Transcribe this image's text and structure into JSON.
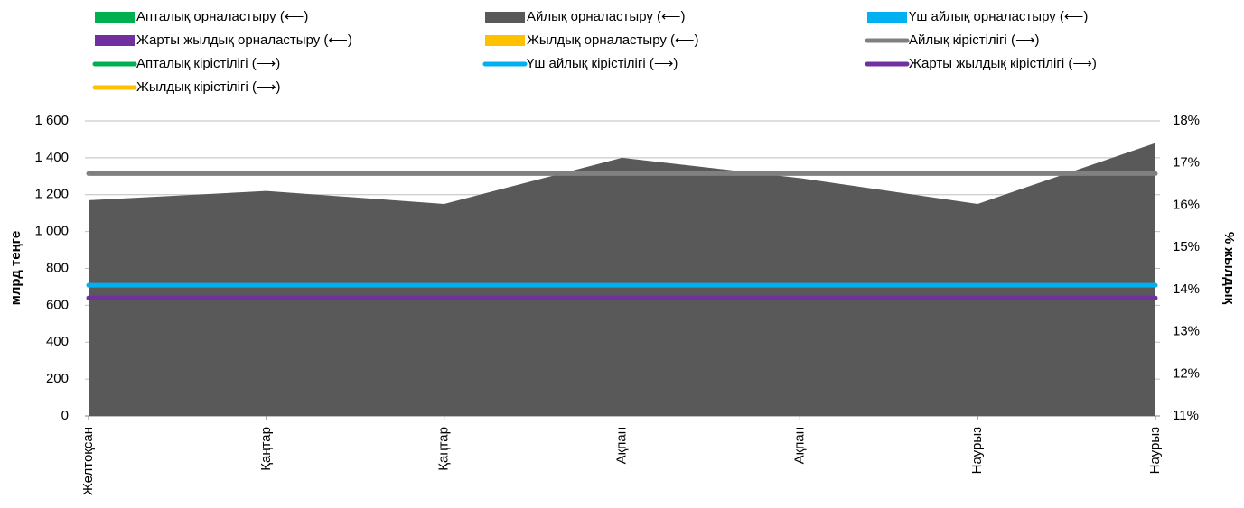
{
  "chart_data": {
    "type": "area-line",
    "categories": [
      "Желтоқсан",
      "Қаңтар",
      "Қаңтар",
      "Ақпан",
      "Ақпан",
      "Наурыз",
      "Наурыз"
    ],
    "y_label": "млрд теңге",
    "y2_label": "% жылдық",
    "ylim": [
      0,
      1600
    ],
    "yticks": [
      0,
      200,
      400,
      600,
      800,
      {
        "value": 1000,
        "label": "1 000"
      },
      {
        "value": 1200,
        "label": "1 200"
      },
      {
        "value": 1400,
        "label": "1 400"
      },
      {
        "value": 1600,
        "label": "1 600"
      }
    ],
    "y2lim": [
      11,
      18
    ],
    "y2ticks": [
      {
        "value": 11,
        "label": "11%"
      },
      {
        "value": 12,
        "label": "12%"
      },
      {
        "value": 13,
        "label": "13%"
      },
      {
        "value": 14,
        "label": "14%"
      },
      {
        "value": 15,
        "label": "15%"
      },
      {
        "value": 16,
        "label": "16%"
      },
      {
        "value": 17,
        "label": "17%"
      },
      {
        "value": 18,
        "label": "18%"
      }
    ],
    "grid": true,
    "series": [
      {
        "name": "Апталық орналастыру (⟵)",
        "kind": "area",
        "color": "#00b050",
        "values": [
          null,
          null,
          null,
          null,
          null,
          null,
          null
        ]
      },
      {
        "name": "Айлық орналастыру (⟵)",
        "kind": "area",
        "color": "#595959",
        "values": [
          1170,
          1220,
          1150,
          1400,
          1290,
          1150,
          1480
        ]
      },
      {
        "name": "Үш айлық орналастыру (⟵)",
        "kind": "area",
        "color": "#00b0f0",
        "values": [
          null,
          null,
          null,
          null,
          null,
          null,
          null
        ]
      },
      {
        "name": "Жарты жылдық орналастыру (⟵)",
        "kind": "area",
        "color": "#7030a0",
        "values": [
          null,
          null,
          null,
          null,
          null,
          null,
          null
        ]
      },
      {
        "name": "Жылдық орналастыру (⟵)",
        "kind": "area",
        "color": "#ffc000",
        "values": [
          null,
          null,
          null,
          null,
          null,
          null,
          null
        ]
      },
      {
        "name": "Айлық кірістілігі (⟶)",
        "kind": "line",
        "axis": "y2",
        "color": "#808080",
        "values": [
          16.75,
          16.75,
          16.75,
          16.75,
          16.75,
          16.75,
          16.75
        ]
      },
      {
        "name": "Апталық кірістілігі (⟶)",
        "kind": "line",
        "axis": "y2",
        "color": "#00b050",
        "values": [
          null,
          null,
          null,
          null,
          null,
          null,
          null
        ]
      },
      {
        "name": "Үш айлық кірістілігі (⟶)",
        "kind": "line",
        "axis": "y2",
        "color": "#00b0f0",
        "values": [
          14.1,
          14.1,
          14.1,
          14.1,
          14.1,
          14.1,
          14.1
        ]
      },
      {
        "name": "Жарты жылдық кірістілігі (⟶)",
        "kind": "line",
        "axis": "y2",
        "color": "#7030a0",
        "values": [
          13.8,
          13.8,
          13.8,
          13.8,
          13.8,
          13.8,
          13.8
        ]
      },
      {
        "name": "Жылдық кірістілігі (⟶)",
        "kind": "line",
        "axis": "y2",
        "color": "#ffc000",
        "values": [
          null,
          null,
          null,
          null,
          null,
          null,
          null
        ]
      }
    ]
  }
}
